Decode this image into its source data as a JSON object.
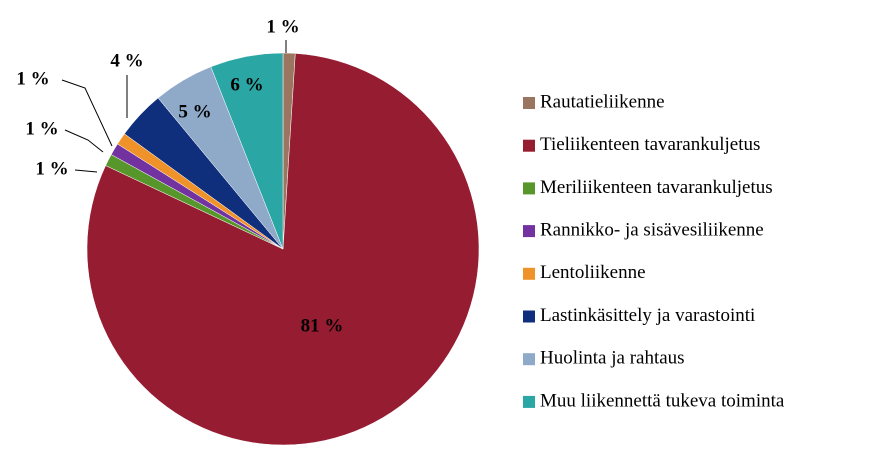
{
  "chart_data": {
    "type": "pie",
    "categories": [
      "Rautatieliikenne",
      "Tieliikenteen tavarankuljetus",
      "Meriliikenteen tavarankuljetus",
      "Rannikko- ja sisävesiliikenne",
      "Lentoliikenne",
      "Lastinkäsittely ja varastointi",
      "Huolinta ja rahtaus",
      "Muu liikennettä tukeva toiminta"
    ],
    "values": [
      1,
      81,
      1,
      1,
      1,
      4,
      5,
      6
    ],
    "value_labels": [
      "1 %",
      "81 %",
      "1 %",
      "1 %",
      "1 %",
      "4 %",
      "5 %",
      "6 %"
    ],
    "colors": [
      "#9a7660",
      "#961c32",
      "#56962a",
      "#7232a0",
      "#f0922a",
      "#0f2e7c",
      "#8fa9c9",
      "#2aa6a4"
    ],
    "legend": "right"
  }
}
